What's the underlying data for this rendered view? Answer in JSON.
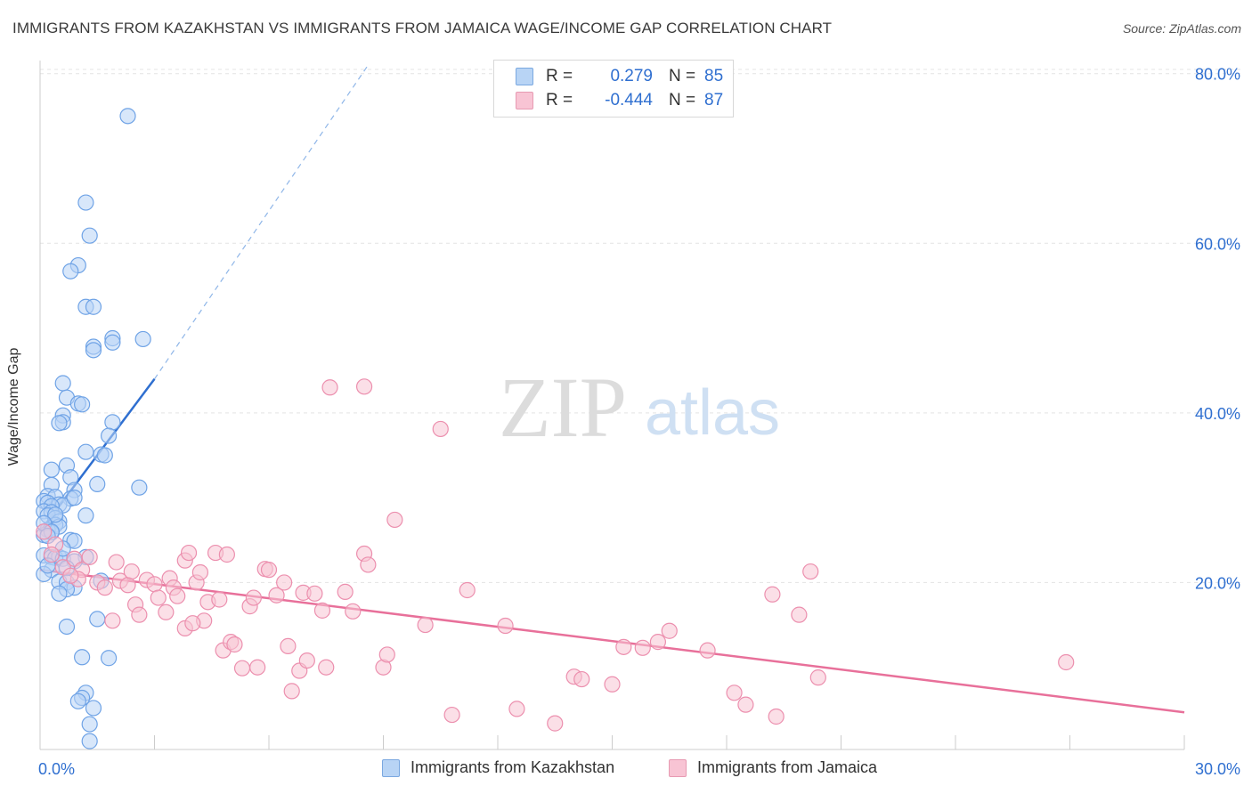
{
  "title": "IMMIGRANTS FROM KAZAKHSTAN VS IMMIGRANTS FROM JAMAICA WAGE/INCOME GAP CORRELATION CHART",
  "source": "Source: ZipAtlas.com",
  "watermark": {
    "zip": "ZIP",
    "atlas": "atlas"
  },
  "legend": {
    "rows": [
      {
        "r_label": "R =",
        "r_value": "0.279",
        "n_label": "N =",
        "n_value": "85",
        "color": "#b8d4f5"
      },
      {
        "r_label": "R =",
        "r_value": "-0.444",
        "n_label": "N =",
        "n_value": "87",
        "color": "#f8c4d4"
      }
    ]
  },
  "chart_data": {
    "type": "scatter",
    "title": "IMMIGRANTS FROM KAZAKHSTAN VS IMMIGRANTS FROM JAMAICA WAGE/INCOME GAP CORRELATION CHART",
    "xlabel": "",
    "ylabel": "Wage/Income Gap",
    "xlim": [
      0,
      30
    ],
    "ylim": [
      0,
      84
    ],
    "x_tick_labels": [
      "0.0%",
      "30.0%"
    ],
    "y_tick_labels": [
      "20.0%",
      "40.0%",
      "60.0%",
      "80.0%"
    ],
    "y_ticks": [
      20,
      40,
      60,
      80
    ],
    "grid": true,
    "legend_position": "bottom",
    "series": [
      {
        "name": "Immigrants from Kazakhstan",
        "color": "#6fa3e6",
        "fill": "#b8d4f5",
        "line_color": "#2f6fd0",
        "trend": {
          "x": [
            0,
            3
          ],
          "y": [
            26,
            44
          ],
          "dashed_to": [
            8.6,
            81
          ]
        },
        "points": [
          [
            2.3,
            75.0
          ],
          [
            1.2,
            64.8
          ],
          [
            1.3,
            60.9
          ],
          [
            1.0,
            57.4
          ],
          [
            0.8,
            56.7
          ],
          [
            1.2,
            52.5
          ],
          [
            1.4,
            52.5
          ],
          [
            1.9,
            48.8
          ],
          [
            2.7,
            48.7
          ],
          [
            1.9,
            48.3
          ],
          [
            1.4,
            47.8
          ],
          [
            1.4,
            47.4
          ],
          [
            0.6,
            43.5
          ],
          [
            0.7,
            41.8
          ],
          [
            1.0,
            41.1
          ],
          [
            1.1,
            41.0
          ],
          [
            0.6,
            39.7
          ],
          [
            0.6,
            38.9
          ],
          [
            1.9,
            38.9
          ],
          [
            0.5,
            38.8
          ],
          [
            1.8,
            37.3
          ],
          [
            1.2,
            35.4
          ],
          [
            1.6,
            35.1
          ],
          [
            1.7,
            35.0
          ],
          [
            0.7,
            33.8
          ],
          [
            0.3,
            33.3
          ],
          [
            0.8,
            32.4
          ],
          [
            0.3,
            31.5
          ],
          [
            1.5,
            31.6
          ],
          [
            2.6,
            31.2
          ],
          [
            0.9,
            30.9
          ],
          [
            0.2,
            30.2
          ],
          [
            0.4,
            30.1
          ],
          [
            0.8,
            29.9
          ],
          [
            0.1,
            29.6
          ],
          [
            0.2,
            29.4
          ],
          [
            0.5,
            29.2
          ],
          [
            0.6,
            29.1
          ],
          [
            0.3,
            29.0
          ],
          [
            0.1,
            28.4
          ],
          [
            0.3,
            28.3
          ],
          [
            0.2,
            27.9
          ],
          [
            1.2,
            27.9
          ],
          [
            0.4,
            27.6
          ],
          [
            0.5,
            27.2
          ],
          [
            0.4,
            26.8
          ],
          [
            0.5,
            26.6
          ],
          [
            0.2,
            26.2
          ],
          [
            0.3,
            25.9
          ],
          [
            0.1,
            25.6
          ],
          [
            0.8,
            25.0
          ],
          [
            0.9,
            24.9
          ],
          [
            0.1,
            23.2
          ],
          [
            0.3,
            23.0
          ],
          [
            0.5,
            23.0
          ],
          [
            1.2,
            23.0
          ],
          [
            0.4,
            22.9
          ],
          [
            0.6,
            22.8
          ],
          [
            0.9,
            22.5
          ],
          [
            0.7,
            21.7
          ],
          [
            0.3,
            21.5
          ],
          [
            0.1,
            21.0
          ],
          [
            1.6,
            20.2
          ],
          [
            0.5,
            20.1
          ],
          [
            0.7,
            20.0
          ],
          [
            0.9,
            19.4
          ],
          [
            0.7,
            19.2
          ],
          [
            0.5,
            18.7
          ],
          [
            1.5,
            15.7
          ],
          [
            0.7,
            14.8
          ],
          [
            1.1,
            11.2
          ],
          [
            1.8,
            11.1
          ],
          [
            1.2,
            7.0
          ],
          [
            1.1,
            6.4
          ],
          [
            1.0,
            6.0
          ],
          [
            1.4,
            5.2
          ],
          [
            1.3,
            3.3
          ],
          [
            1.3,
            1.3
          ],
          [
            0.2,
            22.0
          ],
          [
            0.6,
            24.0
          ],
          [
            0.4,
            28.0
          ],
          [
            0.1,
            27.0
          ],
          [
            0.9,
            30.0
          ],
          [
            0.3,
            26.0
          ],
          [
            0.2,
            25.5
          ]
        ]
      },
      {
        "name": "Immigrants from Jamaica",
        "color": "#ec8fae",
        "fill": "#f8c4d4",
        "line_color": "#e8709a",
        "trend": {
          "x": [
            0,
            30
          ],
          "y": [
            21.5,
            4.7
          ]
        },
        "points": [
          [
            0.1,
            26.0
          ],
          [
            0.4,
            24.5
          ],
          [
            0.3,
            23.3
          ],
          [
            0.6,
            21.8
          ],
          [
            0.9,
            22.8
          ],
          [
            1.1,
            21.5
          ],
          [
            1.0,
            20.4
          ],
          [
            1.5,
            20.0
          ],
          [
            1.7,
            19.4
          ],
          [
            1.9,
            15.5
          ],
          [
            2.0,
            22.4
          ],
          [
            2.1,
            20.2
          ],
          [
            2.3,
            19.7
          ],
          [
            2.4,
            21.3
          ],
          [
            2.5,
            17.4
          ],
          [
            2.6,
            16.2
          ],
          [
            2.8,
            20.3
          ],
          [
            3.0,
            19.8
          ],
          [
            3.1,
            18.2
          ],
          [
            3.3,
            16.5
          ],
          [
            3.4,
            20.5
          ],
          [
            3.5,
            19.4
          ],
          [
            3.6,
            18.4
          ],
          [
            3.8,
            14.6
          ],
          [
            3.8,
            22.6
          ],
          [
            3.9,
            23.5
          ],
          [
            4.1,
            20.0
          ],
          [
            4.2,
            21.2
          ],
          [
            4.3,
            15.5
          ],
          [
            4.4,
            17.7
          ],
          [
            4.0,
            15.2
          ],
          [
            4.6,
            23.5
          ],
          [
            4.7,
            18.0
          ],
          [
            4.8,
            12.0
          ],
          [
            4.9,
            23.3
          ],
          [
            5.0,
            13.0
          ],
          [
            5.1,
            12.7
          ],
          [
            5.3,
            9.9
          ],
          [
            5.5,
            17.2
          ],
          [
            5.6,
            18.2
          ],
          [
            5.7,
            10.0
          ],
          [
            5.9,
            21.6
          ],
          [
            6.0,
            21.5
          ],
          [
            6.2,
            18.5
          ],
          [
            6.4,
            20.0
          ],
          [
            6.5,
            12.5
          ],
          [
            6.6,
            7.2
          ],
          [
            6.8,
            9.6
          ],
          [
            6.9,
            18.8
          ],
          [
            7.0,
            10.8
          ],
          [
            7.2,
            18.7
          ],
          [
            7.4,
            16.7
          ],
          [
            7.5,
            10.0
          ],
          [
            7.6,
            43.0
          ],
          [
            8.0,
            18.9
          ],
          [
            8.2,
            16.6
          ],
          [
            8.5,
            23.4
          ],
          [
            8.6,
            22.1
          ],
          [
            9.0,
            10.0
          ],
          [
            9.1,
            11.5
          ],
          [
            9.3,
            27.4
          ],
          [
            10.5,
            38.1
          ],
          [
            10.1,
            15.0
          ],
          [
            10.8,
            4.4
          ],
          [
            11.2,
            19.1
          ],
          [
            12.2,
            14.9
          ],
          [
            12.5,
            5.1
          ],
          [
            13.5,
            3.4
          ],
          [
            14.0,
            8.9
          ],
          [
            14.2,
            8.6
          ],
          [
            15.0,
            8.0
          ],
          [
            15.3,
            12.4
          ],
          [
            15.8,
            12.3
          ],
          [
            16.2,
            13.0
          ],
          [
            16.5,
            14.3
          ],
          [
            17.5,
            12.0
          ],
          [
            18.2,
            7.0
          ],
          [
            18.5,
            5.6
          ],
          [
            19.2,
            18.6
          ],
          [
            19.3,
            4.2
          ],
          [
            19.9,
            16.2
          ],
          [
            20.2,
            21.3
          ],
          [
            20.4,
            8.8
          ],
          [
            26.9,
            10.6
          ],
          [
            8.5,
            43.1
          ],
          [
            0.8,
            20.8
          ],
          [
            1.3,
            23.0
          ]
        ]
      }
    ]
  }
}
